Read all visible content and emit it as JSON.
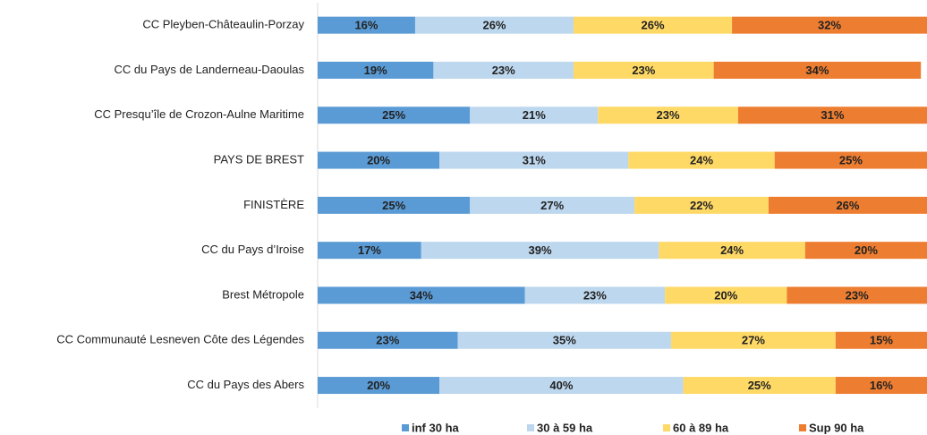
{
  "chart_data": {
    "type": "stacked-bar-horizontal",
    "categories": [
      "CC Pleyben-Châteaulin-Porzay",
      "CC du Pays de Landerneau-Daoulas",
      "CC Presqu’île de Crozon-Aulne Maritime",
      "PAYS DE BREST",
      "FINISTÈRE",
      "CC du Pays d’Iroise",
      "Brest Métropole",
      "CC Communauté Lesneven Côte des Légendes",
      "CC du Pays des Abers"
    ],
    "series": [
      {
        "name": "inf 30 ha",
        "color": "#5b9bd5",
        "values": [
          16,
          19,
          25,
          20,
          25,
          17,
          34,
          23,
          20
        ],
        "value_labels": [
          "16%",
          "19%",
          "25%",
          "20%",
          "25%",
          "17%",
          "34%",
          "23%",
          "20%"
        ]
      },
      {
        "name": "30 à 59 ha",
        "color": "#bdd7ee",
        "values": [
          26,
          23,
          21,
          31,
          27,
          39,
          23,
          35,
          40
        ],
        "value_labels": [
          "26%",
          "23%",
          "21%",
          "31%",
          "27%",
          "39%",
          "23%",
          "35%",
          "40%"
        ]
      },
      {
        "name": "60 à 89 ha",
        "color": "#ffd966",
        "values": [
          26,
          23,
          23,
          24,
          22,
          24,
          20,
          27,
          25
        ],
        "value_labels": [
          "26%",
          "23%",
          "23%",
          "24%",
          "22%",
          "24%",
          "20%",
          "27%",
          "25%"
        ]
      },
      {
        "name": "Sup 90 ha",
        "color": "#ed7d31",
        "values": [
          32,
          34,
          31,
          25,
          26,
          20,
          23,
          15,
          16
        ],
        "value_labels": [
          "32%",
          "34%",
          "31%",
          "25%",
          "26%",
          "20%",
          "23%",
          "15%",
          "16%"
        ]
      }
    ],
    "xlim": [
      0,
      100
    ]
  }
}
